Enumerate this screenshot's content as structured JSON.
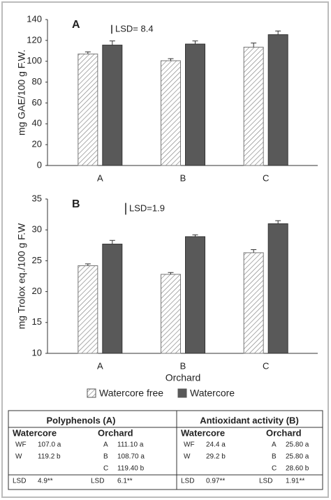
{
  "chart_data": [
    {
      "type": "bar",
      "panel": "A",
      "ylabel": "mg GAE/100 g F.W.",
      "categories": [
        "A",
        "B",
        "C"
      ],
      "series": [
        {
          "color": "#ffffff",
          "hatch": true,
          "values": [
            107,
            100.5,
            113.5
          ],
          "errors": [
            2,
            2,
            4
          ]
        },
        {
          "color": "#595959",
          "hatch": false,
          "values": [
            115.5,
            116.5,
            125.5
          ],
          "errors": [
            4,
            3,
            3.5
          ]
        }
      ],
      "annotation": {
        "text": "LSD= 8.4",
        "value": 8.4
      },
      "ylim": [
        0,
        140
      ],
      "yticks": [
        0,
        20,
        40,
        60,
        80,
        100,
        120,
        140
      ]
    },
    {
      "type": "bar",
      "panel": "B",
      "ylabel": "mg Trolox eq./100 g F.W",
      "xlabel": "Orchard",
      "categories": [
        "A",
        "B",
        "C"
      ],
      "series": [
        {
          "name": "Watercore free",
          "color": "#ffffff",
          "hatch": true,
          "values": [
            24.2,
            22.8,
            26.3
          ],
          "errors": [
            0.3,
            0.3,
            0.5
          ]
        },
        {
          "name": "Watercore",
          "color": "#595959",
          "hatch": false,
          "values": [
            27.7,
            28.9,
            31.0
          ],
          "errors": [
            0.6,
            0.3,
            0.5
          ]
        }
      ],
      "annotation": {
        "text": "LSD=1.9",
        "value": 1.9
      },
      "ylim": [
        10,
        35
      ],
      "yticks": [
        10,
        15,
        20,
        25,
        30,
        35
      ]
    }
  ],
  "table": {
    "sections": [
      {
        "title": "Polyphenols (A)",
        "watercore": {
          "header": "Watercore",
          "rows": [
            [
              "WF",
              "107.0 a"
            ],
            [
              "W",
              "119.2 b"
            ]
          ],
          "lsd": [
            "LSD",
            "4.9**"
          ]
        },
        "orchard": {
          "header": "Orchard",
          "rows": [
            [
              "A",
              "111.10 a"
            ],
            [
              "B",
              "108.70 a"
            ],
            [
              "C",
              "119.40 b"
            ]
          ],
          "lsd": [
            "LSD",
            "6.1**"
          ]
        }
      },
      {
        "title": "Antioxidant activity (B)",
        "watercore": {
          "header": "Watercore",
          "rows": [
            [
              "WF",
              "24.4 a"
            ],
            [
              "W",
              "29.2 b"
            ]
          ],
          "lsd": [
            "LSD",
            "0.97**"
          ]
        },
        "orchard": {
          "header": "Orchard",
          "rows": [
            [
              "A",
              "25.80 a"
            ],
            [
              "B",
              "25.80 a"
            ],
            [
              "C",
              "28.60 b"
            ]
          ],
          "lsd": [
            "LSD",
            "1.91**"
          ]
        }
      }
    ]
  }
}
